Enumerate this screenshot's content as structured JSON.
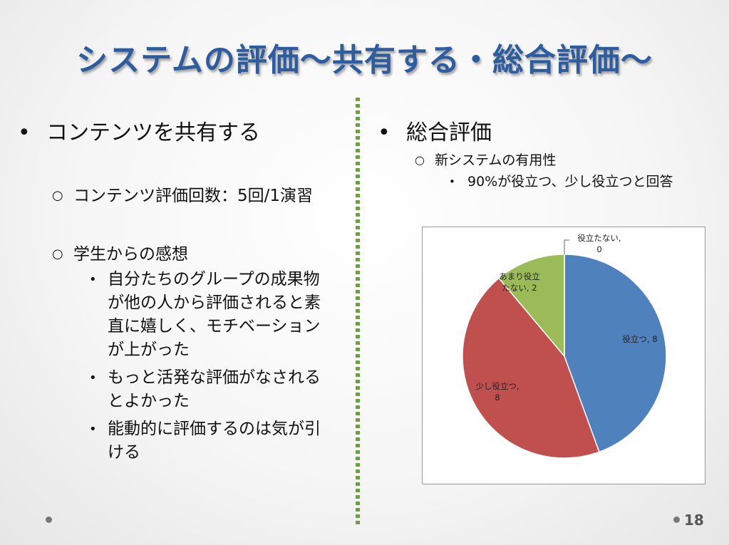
{
  "slide": {
    "title": "システムの評価～共有する・総合評価～",
    "page_number": "18"
  },
  "left": {
    "heading": "コンテンツを共有する",
    "items": [
      {
        "text": "コンテンツ評価回数：5回/1演習"
      },
      {
        "text": "学生からの感想"
      }
    ],
    "impressions": [
      "自分たちのグループの成果物が他の人から評価されると素直に嬉しく、モチベーションが上がった",
      "もっと活発な評価がなされるとよかった",
      "能動的に評価するのは気が引ける"
    ]
  },
  "right": {
    "heading": "総合評価",
    "sub": "新システムの有用性",
    "subsub": "90%が役立つ、少し役立つと回答"
  },
  "chart_data": {
    "type": "pie",
    "title": "",
    "slices": [
      {
        "name": "役立つ",
        "value": 8,
        "label": "役立つ, 8",
        "color": "#4f81bd"
      },
      {
        "name": "少し役立つ",
        "value": 8,
        "label_lines": [
          "少し役立つ,",
          "8"
        ],
        "color": "#c0504d"
      },
      {
        "name": "あまり役立たない",
        "value": 2,
        "label_lines": [
          "あまり役立",
          "たない, 2"
        ],
        "color": "#9bbb59"
      },
      {
        "name": "役立たない",
        "value": 0,
        "label_lines": [
          "役立たない,",
          "0"
        ],
        "color": "#8064a2"
      }
    ],
    "legend": "none",
    "data_labels": true
  },
  "colors": {
    "title": "#2e5d9f",
    "divider": "#6aa13a"
  }
}
